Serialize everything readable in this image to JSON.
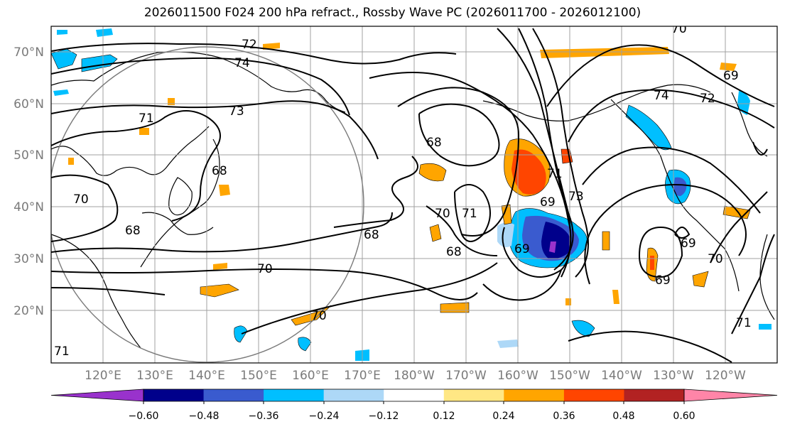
{
  "title": "2026011500 F024 200 hPa refract., Rossby Wave PC (2026011700 - 2026012100)",
  "map": {
    "lon_ticks": [
      "120°E",
      "130°E",
      "140°E",
      "150°E",
      "160°E",
      "170°E",
      "180°W",
      "170°W",
      "160°W",
      "150°W",
      "140°W",
      "130°W",
      "120°W"
    ],
    "lat_ticks": [
      "70°N",
      "60°N",
      "50°N",
      "40°N",
      "30°N",
      "20°N"
    ]
  },
  "contours": {
    "labels": [
      "72",
      "74",
      "73",
      "71",
      "70",
      "68",
      "68",
      "71",
      "70",
      "69",
      "68",
      "68",
      "70",
      "68",
      "70",
      "74",
      "72",
      "69",
      "69",
      "69",
      "70",
      "71",
      "73",
      "70",
      "71",
      "69",
      "71"
    ]
  },
  "colorbar": {
    "colors": [
      "#9932cc",
      "#00008b",
      "#3a5bcf",
      "#00bfff",
      "#add8f7",
      "#ffffff",
      "#ffe784",
      "#ffa500",
      "#ff4500",
      "#b22222",
      "#ff85a8"
    ],
    "labels": [
      "−0.60",
      "−0.48",
      "−0.36",
      "−0.24",
      "−0.12",
      "0.12",
      "0.24",
      "0.36",
      "0.48",
      "0.60"
    ]
  }
}
